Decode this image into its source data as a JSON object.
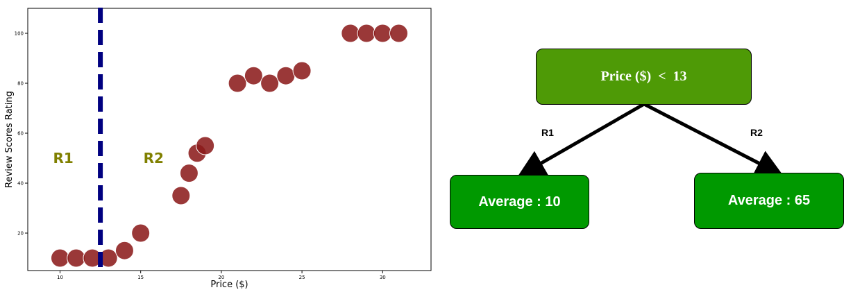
{
  "chart_data": {
    "type": "scatter",
    "xlabel": "Price ($)",
    "ylabel": "Review Scores Rating",
    "xlim": [
      8,
      33
    ],
    "ylim": [
      5,
      110
    ],
    "x_ticks": [
      10,
      15,
      20,
      25,
      30
    ],
    "y_ticks": [
      20,
      40,
      60,
      80,
      100
    ],
    "points": [
      {
        "x": 10,
        "y": 10
      },
      {
        "x": 11,
        "y": 10
      },
      {
        "x": 12,
        "y": 10
      },
      {
        "x": 13,
        "y": 10
      },
      {
        "x": 14,
        "y": 13
      },
      {
        "x": 15,
        "y": 20
      },
      {
        "x": 17.5,
        "y": 35
      },
      {
        "x": 18,
        "y": 44
      },
      {
        "x": 18.5,
        "y": 52
      },
      {
        "x": 19,
        "y": 55
      },
      {
        "x": 21,
        "y": 80
      },
      {
        "x": 22,
        "y": 83
      },
      {
        "x": 23,
        "y": 80
      },
      {
        "x": 24,
        "y": 83
      },
      {
        "x": 25,
        "y": 85
      },
      {
        "x": 28,
        "y": 100
      },
      {
        "x": 29,
        "y": 100
      },
      {
        "x": 30,
        "y": 100
      },
      {
        "x": 31,
        "y": 100
      }
    ],
    "split_x": 12.5,
    "point_color": "#8b1a1a",
    "split_color": "#000080",
    "regions": [
      {
        "label": "R1",
        "x": 10.2,
        "y": 50
      },
      {
        "label": "R2",
        "x": 15.8,
        "y": 50
      }
    ],
    "region_color": "#808000"
  },
  "tree": {
    "root": {
      "label": "Price ($)  <  13",
      "color": "#4e9a06"
    },
    "edges": [
      {
        "label": "R1"
      },
      {
        "label": "R2"
      }
    ],
    "leaves": [
      {
        "label": "Average : 10",
        "color": "#009900"
      },
      {
        "label": "Average : 65",
        "color": "#009900"
      }
    ]
  }
}
